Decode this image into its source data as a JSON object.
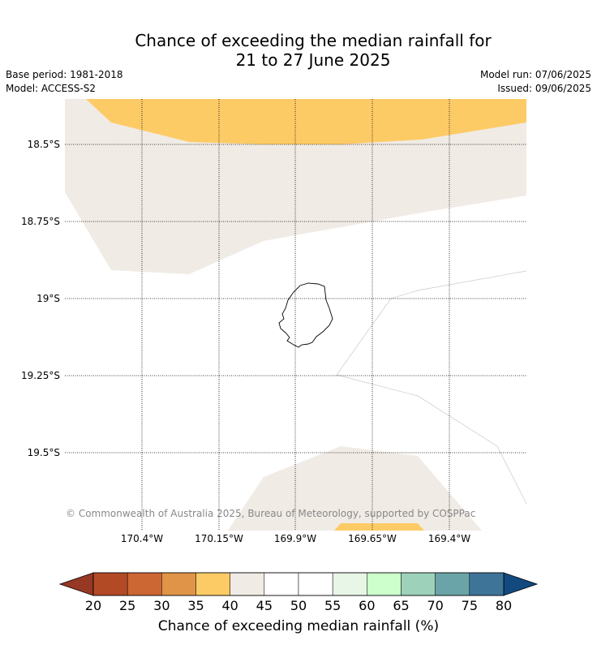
{
  "title_line1": "Chance of exceeding the median rainfall for",
  "title_line2": "21 to 27 June 2025",
  "base_period": "Base period: 1981-2018",
  "model": "Model: ACCESS-S2",
  "model_run": "Model run: 07/06/2025",
  "issued": "Issued: 09/06/2025",
  "copyright": "© Commonwealth of Australia 2025, Bureau of Meteorology, supported by COSPPac",
  "lat_labels": [
    "18.5°S",
    "18.75°S",
    "19°S",
    "19.25°S",
    "19.5°S"
  ],
  "lon_labels": [
    "170.4°W",
    "170.15°W",
    "169.9°W",
    "169.65°W",
    "169.4°W"
  ],
  "colorbar": {
    "label": "Chance of exceeding median rainfall (%)",
    "ticks": [
      "20",
      "25",
      "30",
      "35",
      "40",
      "45",
      "50",
      "55",
      "60",
      "65",
      "70",
      "75",
      "80"
    ],
    "colors": [
      "#b34a26",
      "#cc6633",
      "#e09447",
      "#fdcb66",
      "#f0ebe5",
      "#ffffff",
      "#ffffff",
      "#e8f6e8",
      "#ccffcc",
      "#9dd1b9",
      "#6aa4a8",
      "#3f7499"
    ],
    "under_color": "#963824",
    "over_color": "#124a80"
  },
  "map_colors": {
    "band_35_40": "#fdcb66",
    "band_40_45": "#f0ebe5",
    "band_45_55": "#ffffff"
  }
}
